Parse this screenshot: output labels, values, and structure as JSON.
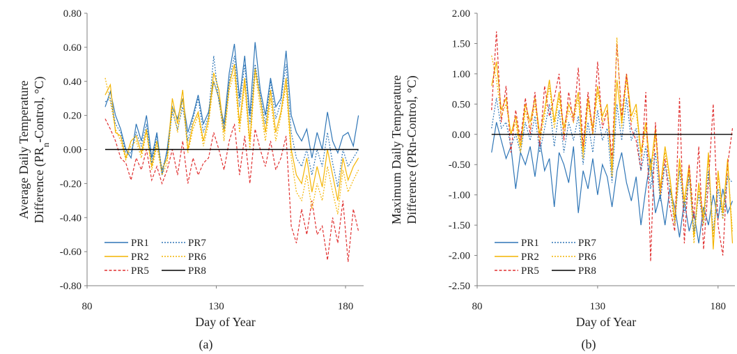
{
  "chart_data": [
    {
      "type": "line",
      "panel_label": "(a)",
      "xlabel": "Day of Year",
      "ylabel_line1": "Average Daily Temperature",
      "ylabel_line2_prefix": "Difference (PR",
      "ylabel_line2_sub": "n",
      "ylabel_line2_suffix": "-Control, °C)",
      "xlim": [
        80,
        187
      ],
      "ylim": [
        -0.8,
        0.8
      ],
      "xticks": [
        80,
        130,
        180
      ],
      "xtick_labels": [
        "80",
        "130",
        "180"
      ],
      "yticks": [
        -0.8,
        -0.6,
        -0.4,
        -0.2,
        0.0,
        0.2,
        0.4,
        0.6,
        0.8
      ],
      "ytick_labels": [
        "-0.80",
        "-0.60",
        "-0.40",
        "-0.20",
        "0.00",
        "0.20",
        "0.40",
        "0.60",
        "0.80"
      ],
      "legend_position": "bottom-left",
      "x": [
        87,
        89,
        91,
        93,
        95,
        97,
        99,
        101,
        103,
        105,
        107,
        109,
        111,
        113,
        115,
        117,
        119,
        121,
        123,
        125,
        127,
        129,
        131,
        133,
        135,
        137,
        139,
        141,
        143,
        145,
        147,
        149,
        151,
        153,
        155,
        157,
        159,
        161,
        163,
        165,
        167,
        169,
        171,
        173,
        175,
        177,
        179,
        181,
        183,
        185
      ],
      "series": [
        {
          "name": "PR1",
          "color": "#2e75b6",
          "dash": "solid",
          "values": [
            0.25,
            0.34,
            0.2,
            0.12,
            0.0,
            -0.05,
            0.15,
            0.05,
            0.2,
            -0.05,
            0.1,
            -0.15,
            0.0,
            0.25,
            0.18,
            0.3,
            0.1,
            0.2,
            0.32,
            0.15,
            0.22,
            0.4,
            0.3,
            0.15,
            0.45,
            0.62,
            0.3,
            0.55,
            0.2,
            0.63,
            0.35,
            0.2,
            0.42,
            0.25,
            0.3,
            0.58,
            0.2,
            0.1,
            0.05,
            0.12,
            -0.05,
            0.1,
            0.0,
            0.22,
            0.05,
            -0.02,
            0.08,
            0.1,
            0.02,
            0.2
          ]
        },
        {
          "name": "PR2",
          "color": "#f4b400",
          "dash": "solid",
          "values": [
            0.32,
            0.38,
            0.1,
            0.08,
            -0.05,
            0.05,
            0.08,
            -0.02,
            0.12,
            -0.1,
            0.05,
            -0.12,
            -0.05,
            0.3,
            0.15,
            0.35,
            0.0,
            0.15,
            0.22,
            0.05,
            0.18,
            0.45,
            0.35,
            0.1,
            0.38,
            0.5,
            0.15,
            0.42,
            0.05,
            0.48,
            0.3,
            0.1,
            0.35,
            0.1,
            0.22,
            0.42,
            0.0,
            -0.15,
            -0.2,
            -0.05,
            -0.25,
            -0.1,
            -0.22,
            0.0,
            -0.15,
            -0.3,
            -0.05,
            -0.18,
            -0.1,
            -0.05
          ]
        },
        {
          "name": "PR5",
          "color": "#e03030",
          "dash": "dashed",
          "values": [
            0.18,
            0.12,
            0.05,
            -0.05,
            -0.08,
            -0.18,
            -0.05,
            -0.12,
            0.0,
            -0.18,
            -0.1,
            -0.2,
            -0.12,
            0.0,
            -0.15,
            0.05,
            -0.2,
            -0.05,
            -0.15,
            -0.08,
            -0.05,
            0.1,
            0.0,
            -0.12,
            0.05,
            0.15,
            -0.15,
            0.08,
            -0.2,
            0.12,
            0.0,
            -0.1,
            0.05,
            -0.12,
            -0.05,
            0.08,
            -0.45,
            -0.55,
            -0.35,
            -0.5,
            -0.3,
            -0.5,
            -0.45,
            -0.65,
            -0.4,
            -0.55,
            -0.3,
            -0.66,
            -0.35,
            -0.48
          ]
        },
        {
          "name": "PR7",
          "color": "#2e75b6",
          "dash": "dotted",
          "values": [
            0.28,
            0.3,
            0.15,
            0.1,
            -0.02,
            -0.02,
            0.1,
            0.02,
            0.15,
            -0.08,
            0.08,
            -0.12,
            -0.02,
            0.22,
            0.12,
            0.25,
            0.05,
            0.18,
            0.3,
            0.1,
            0.2,
            0.55,
            0.28,
            0.12,
            0.4,
            0.55,
            0.25,
            0.5,
            0.15,
            0.5,
            0.32,
            0.15,
            0.4,
            0.18,
            0.28,
            0.5,
            0.1,
            -0.05,
            -0.1,
            0.0,
            -0.15,
            0.0,
            -0.1,
            0.1,
            -0.08,
            -0.22,
            0.0,
            -0.1,
            -0.05,
            0.0
          ]
        },
        {
          "name": "PR6",
          "color": "#f4b400",
          "dash": "dotted",
          "values": [
            0.42,
            0.28,
            0.12,
            0.05,
            -0.06,
            0.02,
            0.05,
            -0.05,
            0.1,
            -0.12,
            0.02,
            -0.15,
            -0.08,
            0.25,
            0.1,
            0.3,
            -0.02,
            0.12,
            0.2,
            0.02,
            0.15,
            0.4,
            0.3,
            0.05,
            0.35,
            0.45,
            0.1,
            0.38,
            0.0,
            0.45,
            0.25,
            0.05,
            0.3,
            0.05,
            0.2,
            0.38,
            -0.05,
            -0.25,
            -0.3,
            -0.15,
            -0.35,
            -0.2,
            -0.3,
            -0.1,
            -0.25,
            -0.38,
            -0.12,
            -0.25,
            -0.18,
            -0.12
          ]
        },
        {
          "name": "PR8",
          "color": "#000000",
          "dash": "solid",
          "values": [
            0,
            0,
            0,
            0,
            0,
            0,
            0,
            0,
            0,
            0,
            0,
            0,
            0,
            0,
            0,
            0,
            0,
            0,
            0,
            0,
            0,
            0,
            0,
            0,
            0,
            0,
            0,
            0,
            0,
            0,
            0,
            0,
            0,
            0,
            0,
            0,
            0,
            0,
            0,
            0,
            0,
            0,
            0,
            0,
            0,
            0,
            0,
            0,
            0,
            0
          ]
        }
      ]
    },
    {
      "type": "line",
      "panel_label": "(b)",
      "xlabel": "Day of Year",
      "ylabel_line1": "Maximum Daily Temperature",
      "ylabel_line2_prefix": "Difference (PRn-Control, °C)",
      "ylabel_line2_sub": "",
      "ylabel_line2_suffix": "",
      "xlim": [
        80,
        187
      ],
      "ylim": [
        -2.5,
        2.0
      ],
      "xticks": [
        80,
        130,
        180
      ],
      "xtick_labels": [
        "80",
        "130",
        "180"
      ],
      "yticks": [
        -2.5,
        -2.0,
        -1.5,
        -1.0,
        -0.5,
        0.0,
        0.5,
        1.0,
        1.5,
        2.0
      ],
      "ytick_labels": [
        "-2.50",
        "-2.00",
        "-1.50",
        "-1.00",
        "-0.50",
        "0.00",
        "0.50",
        "1.00",
        "1.50",
        "2.00"
      ],
      "legend_position": "bottom-left",
      "x": [
        86,
        88,
        90,
        92,
        94,
        96,
        98,
        100,
        102,
        104,
        106,
        108,
        110,
        112,
        114,
        116,
        118,
        120,
        122,
        124,
        126,
        128,
        130,
        132,
        134,
        136,
        138,
        140,
        142,
        144,
        146,
        148,
        150,
        152,
        154,
        156,
        158,
        160,
        162,
        164,
        166,
        168,
        170,
        172,
        174,
        176,
        178,
        180,
        182,
        184,
        186
      ],
      "series": [
        {
          "name": "PR1",
          "color": "#2e75b6",
          "dash": "solid",
          "values": [
            -0.3,
            0.2,
            -0.1,
            -0.4,
            -0.2,
            -0.9,
            -0.3,
            -0.5,
            -0.2,
            -0.7,
            -0.1,
            -0.6,
            -0.4,
            -1.2,
            -0.3,
            -0.5,
            -0.8,
            -0.2,
            -1.3,
            -0.6,
            -0.9,
            -0.4,
            -1.0,
            -0.5,
            -0.7,
            -1.2,
            -0.6,
            -0.3,
            -0.8,
            -1.1,
            -0.7,
            -1.5,
            -0.9,
            -0.4,
            -1.3,
            -1.0,
            -1.5,
            -0.9,
            -1.2,
            -1.7,
            -1.1,
            -1.6,
            -1.3,
            -1.8,
            -1.2,
            -1.5,
            -1.0,
            -1.4,
            -0.9,
            -1.3,
            -1.1
          ]
        },
        {
          "name": "PR2",
          "color": "#f4b400",
          "dash": "solid",
          "values": [
            0.8,
            1.2,
            0.4,
            0.6,
            0.0,
            0.3,
            -0.2,
            0.5,
            0.2,
            0.6,
            0.0,
            0.4,
            0.9,
            0.2,
            0.7,
            0.1,
            0.5,
            0.3,
            0.7,
            -0.3,
            0.6,
            0.1,
            0.8,
            0.3,
            0.5,
            -0.6,
            0.9,
            0.2,
            1.0,
            0.3,
            0.5,
            -0.3,
            0.2,
            -0.6,
            0.1,
            -0.9,
            -0.2,
            -0.7,
            -1.4,
            -0.4,
            -1.1,
            -0.5,
            -1.7,
            -0.8,
            -1.4,
            -0.3,
            -1.9,
            -0.6,
            -1.3,
            -0.4,
            -1.8
          ]
        },
        {
          "name": "PR5",
          "color": "#e03030",
          "dash": "dashed",
          "values": [
            0.4,
            1.7,
            0.2,
            0.8,
            -0.3,
            0.4,
            -0.1,
            0.6,
            0.0,
            0.7,
            -0.2,
            0.8,
            0.3,
            0.6,
            1.0,
            -0.1,
            0.7,
            0.2,
            1.1,
            -0.2,
            0.7,
            0.0,
            1.2,
            0.1,
            0.4,
            -0.4,
            1.5,
            0.3,
            1.0,
            0.1,
            -0.1,
            -0.6,
            0.7,
            -2.1,
            0.2,
            -1.0,
            -0.4,
            -1.2,
            -1.6,
            0.6,
            -1.8,
            -0.5,
            -1.4,
            -0.2,
            -1.9,
            -0.8,
            0.5,
            -1.5,
            -2.0,
            -0.5,
            0.1
          ]
        },
        {
          "name": "PR7",
          "color": "#2e75b6",
          "dash": "dotted",
          "values": [
            0.1,
            0.6,
            0.1,
            0.2,
            -0.2,
            0.0,
            -0.3,
            0.2,
            -0.1,
            0.3,
            -0.3,
            0.1,
            0.5,
            -0.2,
            0.4,
            -0.3,
            0.2,
            -0.1,
            0.3,
            -0.5,
            0.2,
            -0.3,
            0.4,
            -0.1,
            0.1,
            -0.8,
            0.5,
            -0.1,
            0.6,
            -0.1,
            0.1,
            -0.6,
            -0.2,
            -0.9,
            -0.3,
            -1.1,
            -0.5,
            -0.9,
            -1.5,
            -0.6,
            -1.3,
            -0.7,
            -1.6,
            -1.0,
            -1.5,
            -0.6,
            -1.6,
            -0.9,
            -1.4,
            -0.7,
            -0.8
          ]
        },
        {
          "name": "PR6",
          "color": "#f4b400",
          "dash": "dotted",
          "values": [
            1.3,
            0.9,
            0.3,
            0.5,
            0.0,
            0.2,
            -0.3,
            0.4,
            0.1,
            0.5,
            -0.1,
            0.3,
            0.8,
            0.1,
            0.6,
            0.0,
            0.4,
            0.2,
            0.6,
            -0.4,
            0.5,
            0.0,
            0.7,
            0.2,
            0.4,
            -0.7,
            1.6,
            0.1,
            0.9,
            0.2,
            0.4,
            -0.4,
            0.1,
            -0.7,
            0.0,
            -1.0,
            -0.3,
            -0.8,
            -1.5,
            -0.5,
            -1.2,
            -0.6,
            -1.8,
            -0.9,
            -1.5,
            -0.4,
            -1.7,
            -0.7,
            -1.4,
            -0.5,
            -1.6
          ]
        },
        {
          "name": "PR8",
          "color": "#000000",
          "dash": "solid",
          "values": [
            0,
            0,
            0,
            0,
            0,
            0,
            0,
            0,
            0,
            0,
            0,
            0,
            0,
            0,
            0,
            0,
            0,
            0,
            0,
            0,
            0,
            0,
            0,
            0,
            0,
            0,
            0,
            0,
            0,
            0,
            0,
            0,
            0,
            0,
            0,
            0,
            0,
            0,
            0,
            0,
            0,
            0,
            0,
            0,
            0,
            0,
            0,
            0,
            0,
            0,
            0
          ]
        }
      ]
    }
  ]
}
